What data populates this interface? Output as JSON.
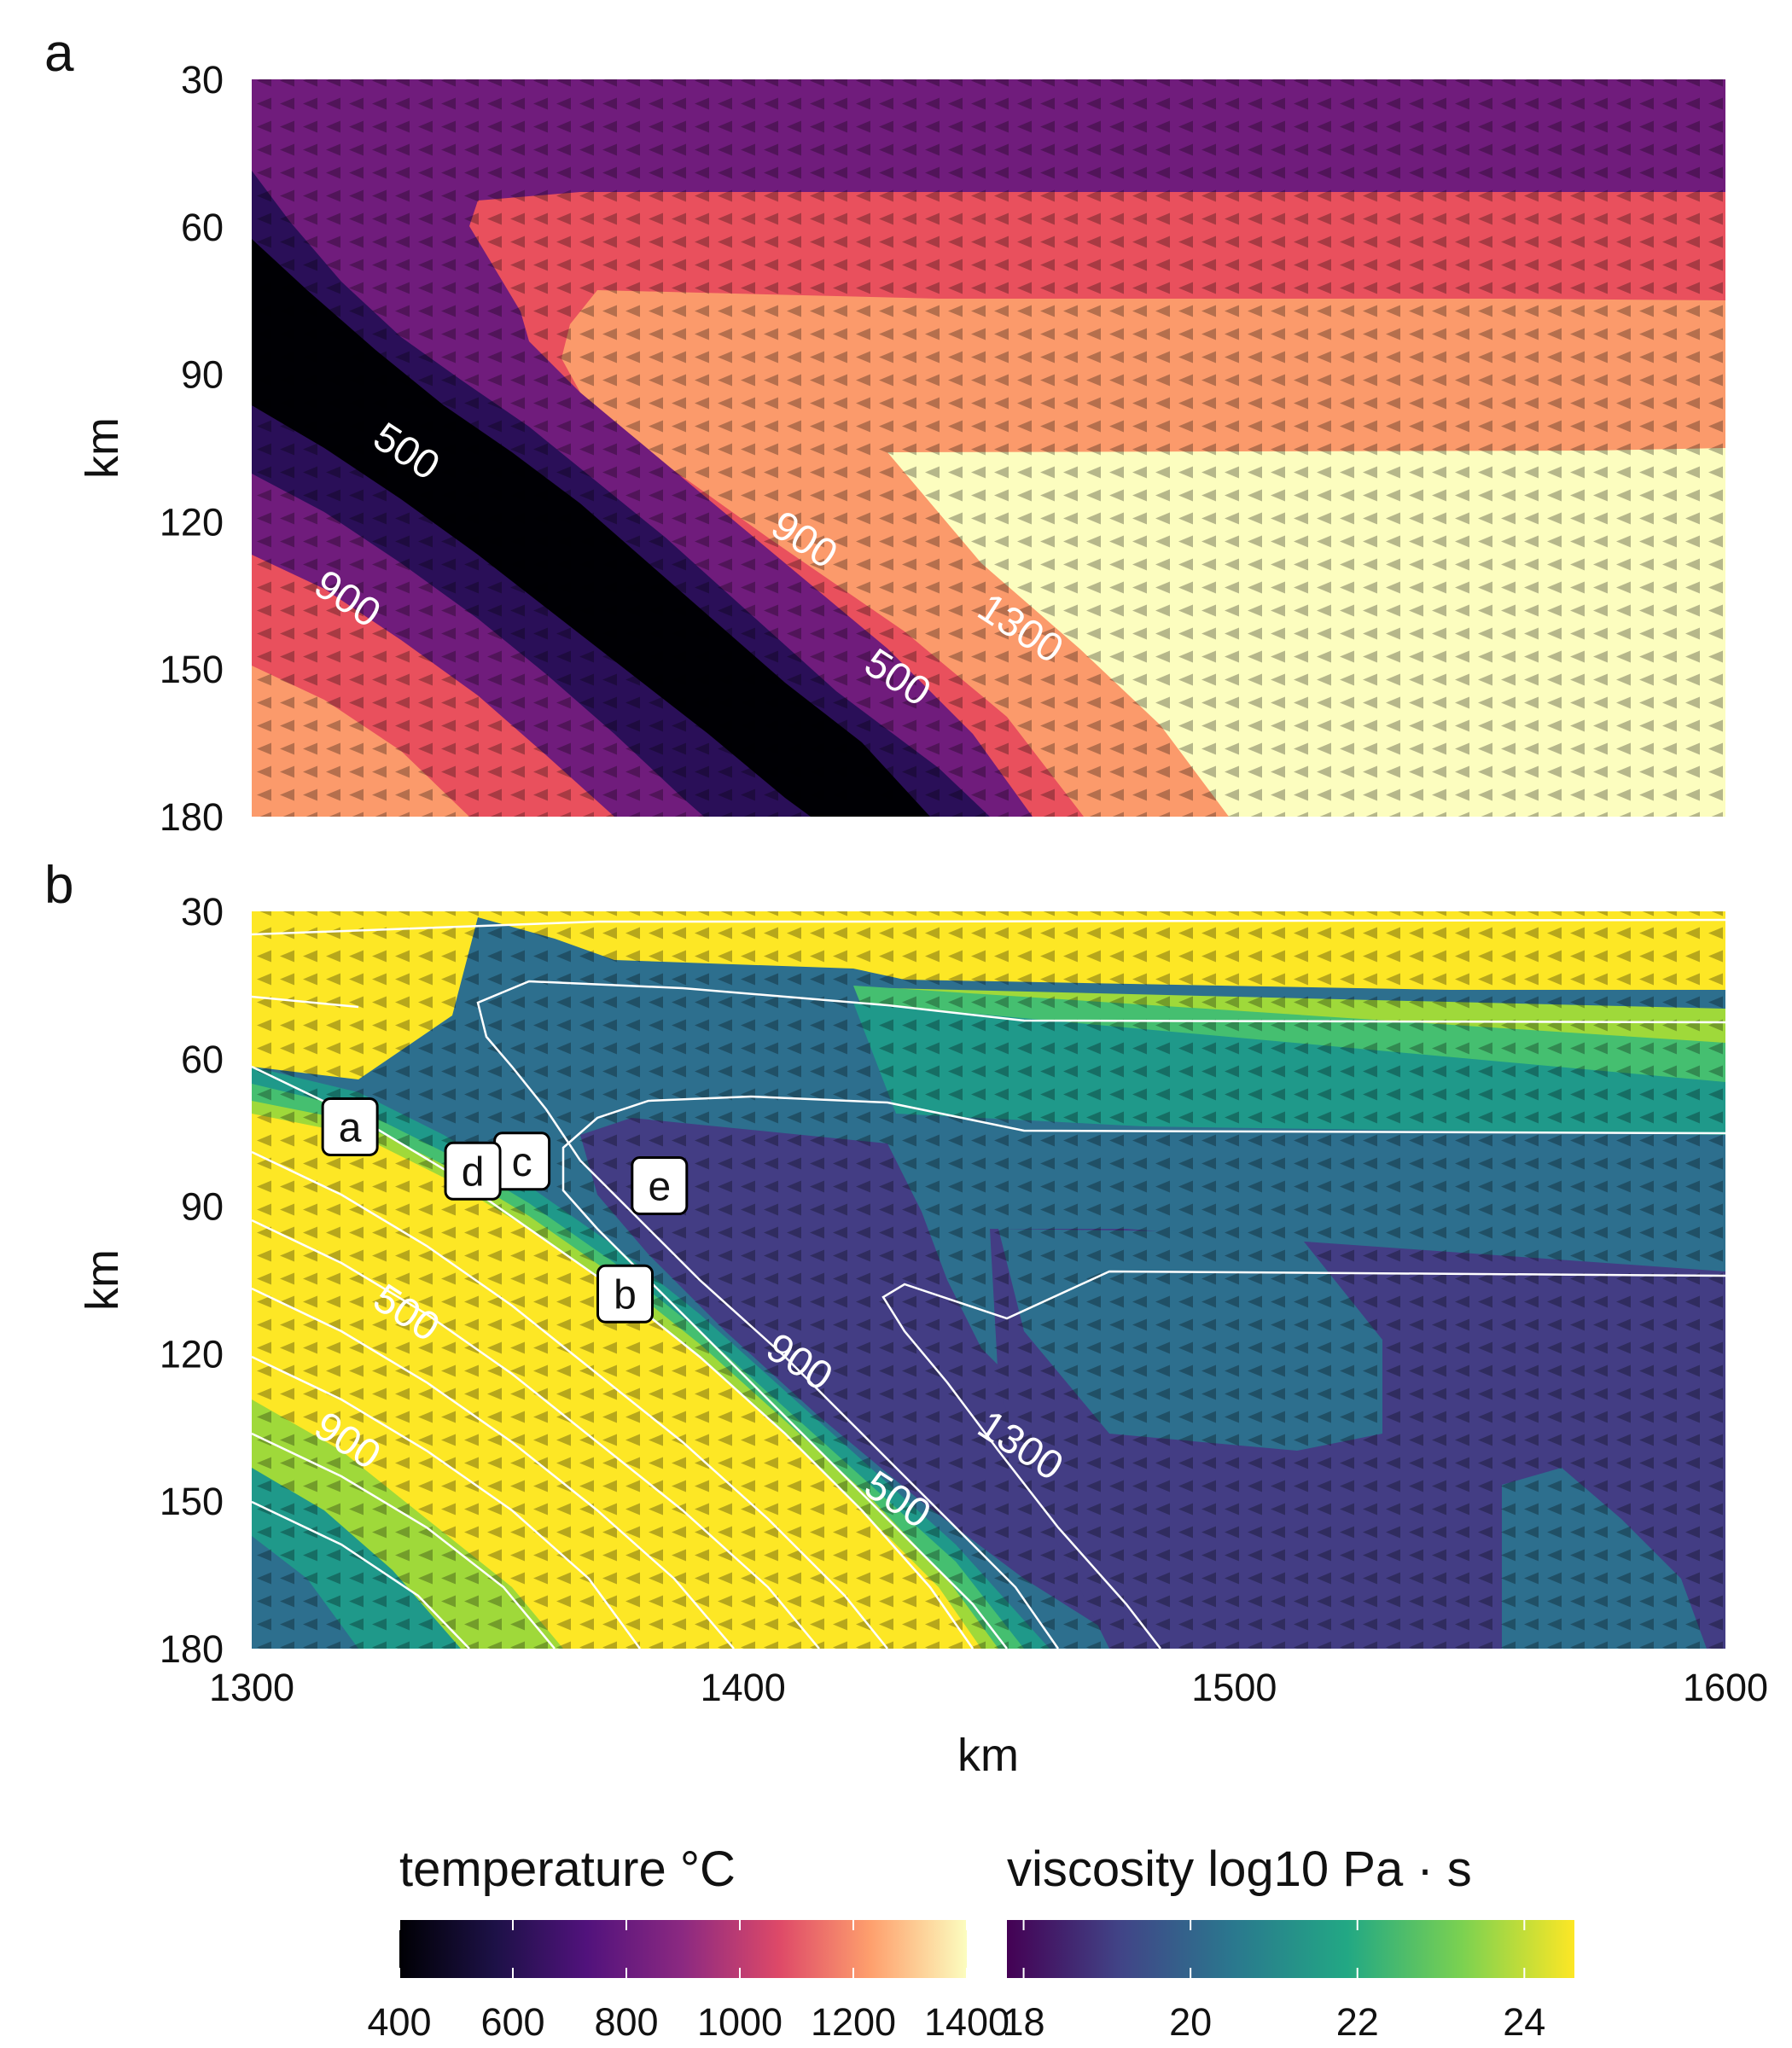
{
  "colors": {
    "temp": [
      "#000004",
      "#2a0f58",
      "#701c7c",
      "#b33470",
      "#e9505d",
      "#fb9a6b",
      "#fcfdbf"
    ],
    "visc": [
      "#440154",
      "#433d84",
      "#2d6f8e",
      "#1f998a",
      "#45bf70",
      "#9fd93a",
      "#fde725"
    ],
    "contour": "#ffffff",
    "arrow": "#000000"
  },
  "chart_data": [
    {
      "panel": "a",
      "type": "heatmap",
      "xlim": [
        1300,
        1600
      ],
      "ylim": [
        180,
        30
      ],
      "yticks": [
        30,
        60,
        90,
        120,
        150,
        180
      ],
      "ylabel": "km",
      "xlabel": "",
      "colorbar": "temperature",
      "contour_labels": [
        {
          "text": "500",
          "x": 1330,
          "y": 108
        },
        {
          "text": "900",
          "x": 1318,
          "y": 138
        },
        {
          "text": "900",
          "x": 1411,
          "y": 126
        },
        {
          "text": "500",
          "x": 1430,
          "y": 154
        },
        {
          "text": "1300",
          "x": 1455,
          "y": 144
        }
      ]
    },
    {
      "panel": "b",
      "type": "heatmap",
      "xlim": [
        1300,
        1600
      ],
      "ylim": [
        180,
        30
      ],
      "xticks": [
        1300,
        1400,
        1500,
        1600
      ],
      "yticks": [
        30,
        60,
        90,
        120,
        150,
        180
      ],
      "xlabel": "km",
      "ylabel": "km",
      "colorbar": "viscosity",
      "contour_labels": [
        {
          "text": "500",
          "x": 1330,
          "y": 114
        },
        {
          "text": "900",
          "x": 1318,
          "y": 140
        },
        {
          "text": "900",
          "x": 1410,
          "y": 124
        },
        {
          "text": "500",
          "x": 1430,
          "y": 152
        },
        {
          "text": "1300",
          "x": 1455,
          "y": 141
        }
      ],
      "annotations": [
        {
          "text": "a",
          "x": 1320,
          "y": 74
        },
        {
          "text": "b",
          "x": 1376,
          "y": 108
        },
        {
          "text": "c",
          "x": 1355,
          "y": 81
        },
        {
          "text": "d",
          "x": 1345,
          "y": 83
        },
        {
          "text": "e",
          "x": 1383,
          "y": 86
        }
      ]
    }
  ],
  "colorbars": [
    {
      "title": "temperature °C",
      "min": 400,
      "max": 1400,
      "ticks": [
        "400",
        "600",
        "800",
        "1000",
        "1200",
        "1400"
      ],
      "tick_values": [
        400,
        600,
        800,
        1000,
        1200,
        1400
      ]
    },
    {
      "title": "viscosity log10 Pa · s",
      "min": 17.8,
      "max": 24.6,
      "ticks": [
        "18",
        "20",
        "22",
        "24"
      ],
      "tick_values": [
        18,
        20,
        22,
        24
      ]
    }
  ]
}
